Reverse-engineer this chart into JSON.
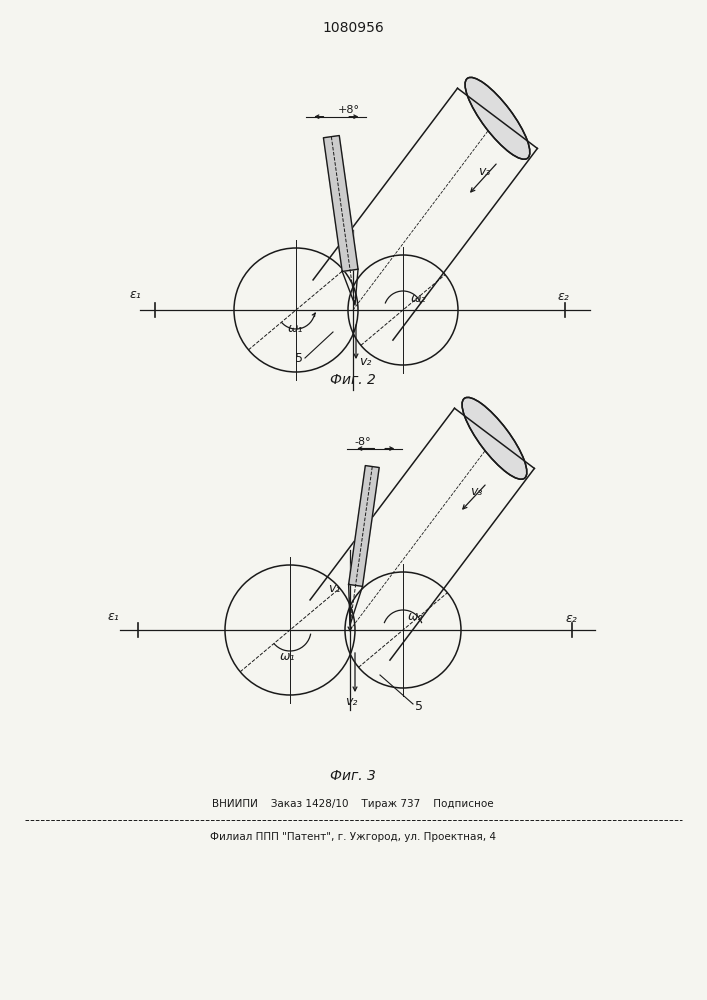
{
  "title": "1080956",
  "fig2_label": "Фиг. 2",
  "fig3_label": "Фиг. 3",
  "footer_line1": "ВНИИПИ    Заказ 1428/10    Тираж 737    Подписное",
  "footer_line2": "Филиал ППП \"Патент\", г. Ужгород, ул. Проектная, 4",
  "angle_label_fig2": "+8°",
  "angle_label_fig3": "-8°",
  "bg_color": "#f5f5f0",
  "line_color": "#1a1a1a",
  "label_v3": "v₃",
  "label_v2_fig2": "v₂",
  "label_v1_fig3": "v₁",
  "label_v2_fig3": "v₂",
  "label_w1": "ω₁",
  "label_w2": "ω₂",
  "label_e1": "ε₁",
  "label_e2": "ε₂",
  "label_5": "5"
}
